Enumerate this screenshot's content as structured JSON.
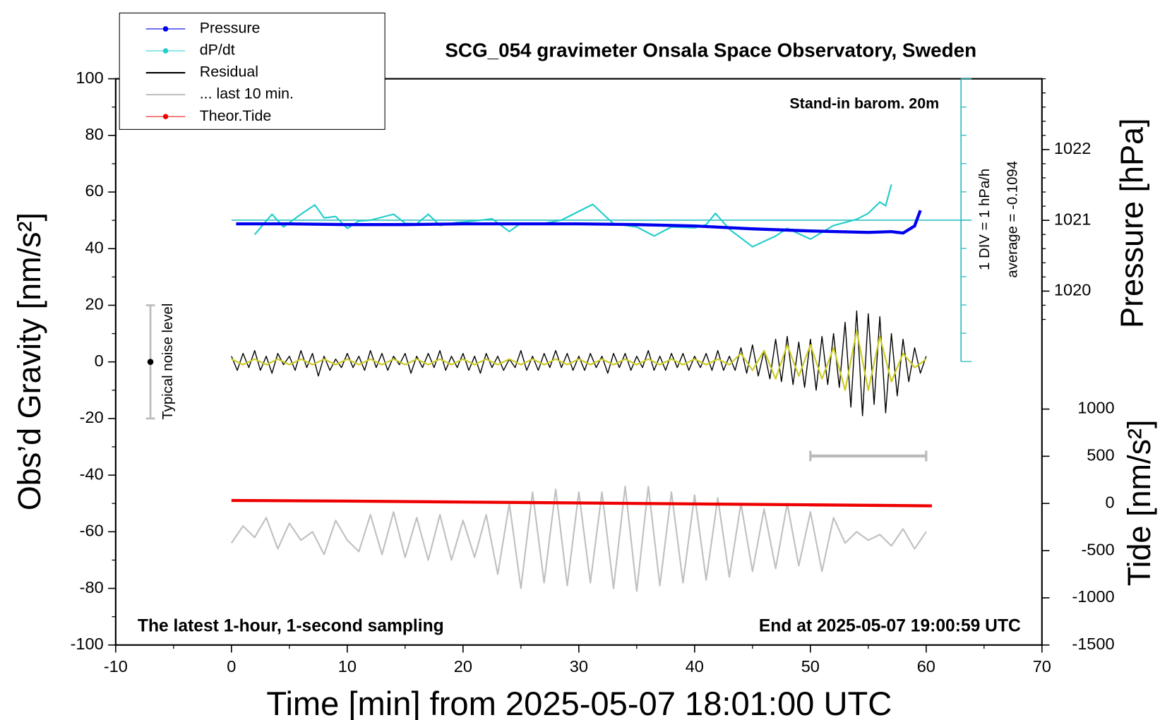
{
  "chart_data": {
    "type": "line",
    "title": "SCG_054 gravimeter Onsala Space Observatory, Sweden",
    "subtitle": "Stand-in barom. 20m",
    "note_left": "The latest 1-hour, 1-second sampling",
    "note_right": "End at 2025-05-07 19:00:59 UTC",
    "xlabel": "Time [min] from 2025-05-07 18:01:00 UTC",
    "ylabel": "Obs’d Gravity [nm/s²]",
    "y2label": "Pressure [hPa]",
    "y3label": "Tide [nm/s²]",
    "xlim": [
      -10,
      70
    ],
    "xticks": [
      -10,
      0,
      10,
      20,
      30,
      40,
      50,
      60,
      70
    ],
    "ylim": [
      -100,
      100
    ],
    "yticks": [
      -100,
      -80,
      -60,
      -40,
      -20,
      0,
      20,
      40,
      60,
      80,
      100
    ],
    "y2lim": [
      1015,
      1023
    ],
    "y2ticks": [
      1020,
      1021,
      1022
    ],
    "y3lim": [
      -1500,
      4500
    ],
    "y3ticks": [
      -1500,
      -1000,
      -500,
      0,
      500,
      1000
    ],
    "dpdt_scale": {
      "label": "1 DIV = 1 hPa/h",
      "average_label": "average = -0.1094",
      "average": -0.1094,
      "div": 1
    },
    "noise_level": {
      "label": "Typical noise level",
      "x": -7,
      "center": 0,
      "half_range": 20
    },
    "last_10_min_bar": {
      "x": [
        50,
        60
      ]
    },
    "legend": "upper left",
    "series": [
      {
        "name": "Pressure",
        "color": "#0000ee",
        "axis": "y2",
        "marker": true,
        "x": [
          0.4,
          5,
          10,
          15,
          20,
          25,
          30,
          35,
          40,
          45,
          50,
          55,
          57,
          58,
          59,
          59.5
        ],
        "values": [
          1020.95,
          1020.95,
          1020.94,
          1020.94,
          1020.95,
          1020.95,
          1020.95,
          1020.94,
          1020.92,
          1020.88,
          1020.85,
          1020.83,
          1020.84,
          1020.82,
          1020.92,
          1021.14
        ]
      },
      {
        "name": "dP/dt",
        "color": "#22cccc",
        "axis": "dpdt",
        "marker": true,
        "x": [
          2,
          3.5,
          4.5,
          6,
          7.2,
          8,
          9,
          10,
          11,
          12,
          14,
          15,
          16,
          17,
          18,
          19.5,
          21,
          22.5,
          24,
          25,
          27,
          28.5,
          31.2,
          33,
          35,
          36.5,
          38,
          40,
          41,
          41.8,
          43,
          45,
          47,
          48,
          50,
          52,
          54,
          55,
          56,
          56.5,
          57
        ],
        "values": [
          -0.62,
          0.1,
          -0.35,
          0.1,
          0.43,
          -0.03,
          0.02,
          -0.4,
          -0.14,
          -0.11,
          0.1,
          -0.22,
          -0.24,
          0.1,
          -0.3,
          -0.19,
          -0.14,
          -0.06,
          -0.51,
          -0.22,
          -0.22,
          -0.11,
          0.45,
          -0.24,
          -0.35,
          -0.67,
          -0.35,
          -0.38,
          -0.27,
          0.13,
          -0.43,
          -1.05,
          -0.67,
          -0.4,
          -0.78,
          -0.3,
          -0.08,
          0.13,
          0.53,
          0.4,
          1.15
        ]
      },
      {
        "name": "Residual",
        "color": "#000000",
        "axis": "y",
        "width": 1.3,
        "x": [
          0,
          0.5,
          1,
          1.5,
          2,
          2.5,
          3,
          3.5,
          4,
          4.5,
          5,
          5.5,
          6,
          6.5,
          7,
          7.5,
          8,
          8.5,
          9,
          9.5,
          10,
          10.5,
          11,
          11.5,
          12,
          12.5,
          13,
          13.5,
          14,
          14.5,
          15,
          15.5,
          16,
          16.5,
          17,
          17.5,
          18,
          18.5,
          19,
          19.5,
          20,
          20.5,
          21,
          21.5,
          22,
          22.5,
          23,
          23.5,
          24,
          24.5,
          25,
          25.5,
          26,
          26.5,
          27,
          27.5,
          28,
          28.5,
          29,
          29.5,
          30,
          30.5,
          31,
          31.5,
          32,
          32.5,
          33,
          33.5,
          34,
          34.5,
          35,
          35.5,
          36,
          36.5,
          37,
          37.5,
          38,
          38.5,
          39,
          39.5,
          40,
          40.5,
          41,
          41.5,
          42,
          42.5,
          43,
          43.5,
          44,
          44.5,
          45,
          45.5,
          46,
          46.5,
          47,
          47.5,
          48,
          48.5,
          49,
          49.5,
          50,
          50.5,
          51,
          51.5,
          52,
          52.5,
          53,
          53.5,
          54,
          54.5,
          55,
          55.5,
          56,
          56.5,
          57,
          57.5,
          58,
          58.5,
          59,
          59.5,
          60
        ],
        "values": [
          2,
          -3,
          3,
          -2,
          4,
          -3,
          2,
          -4,
          3,
          -1,
          2,
          -3,
          4,
          -2,
          3,
          -5,
          2,
          -3,
          1,
          -2,
          3,
          -2,
          2,
          -3,
          4,
          -2,
          3,
          -3,
          2,
          -1,
          3,
          -4,
          2,
          -2,
          3,
          -2,
          4,
          -3,
          2,
          -2,
          3,
          -3,
          2,
          -4,
          3,
          -2,
          2,
          -3,
          1,
          -2,
          4,
          -3,
          2,
          -3,
          3,
          -2,
          4,
          -2,
          3,
          -3,
          2,
          -3,
          3,
          -2,
          2,
          -4,
          3,
          -2,
          3,
          -3,
          2,
          -2,
          4,
          -3,
          2,
          -3,
          3,
          -2,
          3,
          -3,
          2,
          -2,
          3,
          -3,
          4,
          -3,
          2,
          -3,
          5,
          -4,
          6,
          -5,
          4,
          -6,
          8,
          -7,
          9,
          -8,
          7,
          -9,
          8,
          -10,
          9,
          -8,
          10,
          -9,
          14,
          -16,
          18,
          -19,
          17,
          -15,
          16,
          -18,
          10,
          -12,
          8,
          -7,
          5,
          -4,
          2
        ]
      },
      {
        "color": "#cccc22",
        "axis": "y",
        "width": 2,
        "x": [
          0,
          1,
          2,
          3,
          4,
          5,
          6,
          7,
          8,
          9,
          10,
          11,
          12,
          13,
          14,
          15,
          16,
          17,
          18,
          19,
          20,
          21,
          22,
          23,
          24,
          25,
          26,
          27,
          28,
          29,
          30,
          31,
          32,
          33,
          34,
          35,
          36,
          37,
          38,
          39,
          40,
          41,
          42,
          43,
          44,
          45,
          46,
          47,
          48,
          49,
          50,
          51,
          52,
          53,
          54,
          55,
          56,
          57,
          58,
          59,
          60
        ],
        "values": [
          1,
          -1,
          1,
          -1,
          1,
          -1,
          1,
          -1,
          1,
          -1,
          1,
          -1,
          1,
          -1,
          1,
          -1,
          1,
          -1,
          1,
          -1,
          1,
          -1,
          1,
          -1,
          1,
          -1,
          1,
          -1,
          1,
          -1,
          1,
          -1,
          1,
          -1,
          1,
          -1,
          1,
          -1,
          1,
          -1,
          1,
          -1,
          1,
          -1,
          3,
          -3,
          4,
          -6,
          6,
          -5,
          6,
          -6,
          5,
          -10,
          11,
          -10,
          9,
          -7,
          3,
          -2,
          1
        ]
      },
      {
        "name": "... last 10 min.",
        "color": "#c0c0c0",
        "axis": "y",
        "width": 2,
        "x": [
          0,
          1,
          2,
          3,
          4,
          5,
          6,
          7,
          8,
          9,
          10,
          11,
          12,
          13,
          14,
          15,
          16,
          17,
          18,
          19,
          20,
          21,
          22,
          23,
          24,
          25,
          26,
          27,
          28,
          29,
          30,
          31,
          32,
          33,
          34,
          35,
          36,
          37,
          38,
          39,
          40,
          41,
          42,
          43,
          44,
          45,
          46,
          47,
          48,
          49,
          50,
          51,
          52,
          53,
          54,
          55,
          56,
          57,
          58,
          59,
          60
        ],
        "values": [
          -64,
          -58,
          -62,
          -55,
          -66,
          -57,
          -63,
          -60,
          -68,
          -56,
          -63,
          -67,
          -54,
          -68,
          -53,
          -69,
          -55,
          -70,
          -54,
          -70,
          -56,
          -69,
          -54,
          -75,
          -50,
          -80,
          -46,
          -78,
          -45,
          -79,
          -46,
          -78,
          -46,
          -80,
          -44,
          -81,
          -44,
          -79,
          -46,
          -78,
          -47,
          -77,
          -48,
          -76,
          -50,
          -74,
          -52,
          -73,
          -50,
          -72,
          -53,
          -74,
          -55,
          -64,
          -60,
          -63,
          -61,
          -65,
          -59,
          -66,
          -60
        ]
      },
      {
        "name": "Theor.Tide",
        "color": "#ee0000",
        "axis": "y3",
        "marker": true,
        "width": 4,
        "x": [
          0,
          10,
          20,
          30,
          40,
          50,
          60.5
        ],
        "values": [
          32,
          25,
          15,
          5,
          -5,
          -15,
          -25
        ]
      }
    ]
  }
}
